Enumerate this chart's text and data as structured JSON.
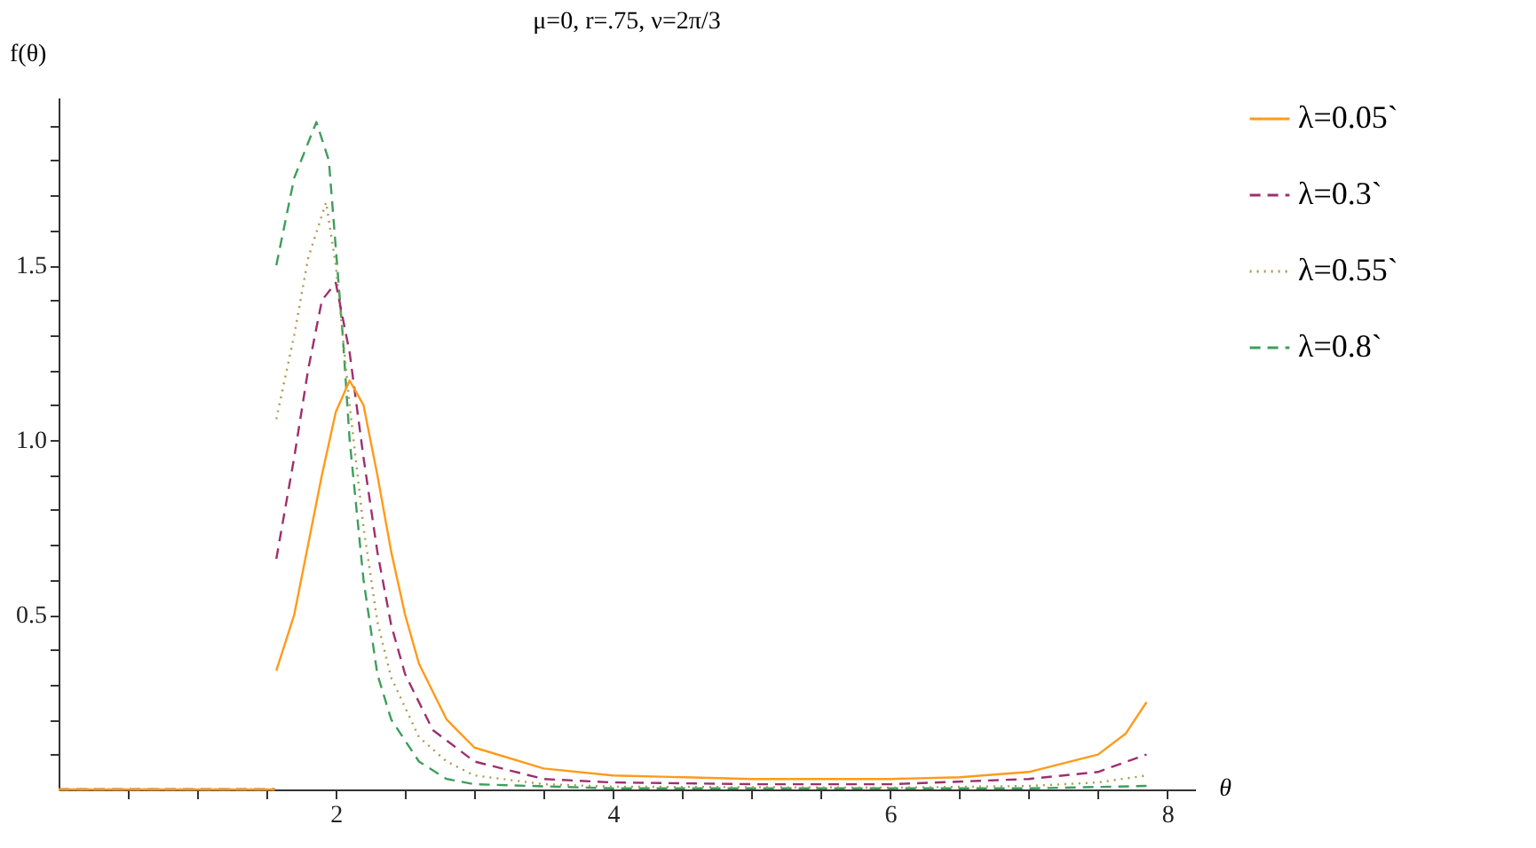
{
  "chart_data": {
    "type": "line",
    "title": "μ=0, r=.75, ν=2π/3",
    "xlabel": "θ",
    "ylabel": "f(θ)",
    "xlim": [
      0,
      8.2
    ],
    "ylim": [
      0,
      1.98
    ],
    "xticks": [
      {
        "value": 0.5,
        "label": null
      },
      {
        "value": 1,
        "label": null
      },
      {
        "value": 1.5,
        "label": null
      },
      2,
      {
        "value": 2.5,
        "label": null
      },
      {
        "value": 3,
        "label": null
      },
      {
        "value": 3.5,
        "label": null
      },
      4,
      {
        "value": 4.5,
        "label": null
      },
      {
        "value": 5,
        "label": null
      },
      {
        "value": 5.5,
        "label": null
      },
      6,
      {
        "value": 6.5,
        "label": null
      },
      {
        "value": 7,
        "label": null
      },
      {
        "value": 7.5,
        "label": null
      },
      8
    ],
    "yticks": [
      {
        "value": 0.1,
        "label": null
      },
      {
        "value": 0.2,
        "label": null
      },
      {
        "value": 0.3,
        "label": null
      },
      {
        "value": 0.4,
        "label": null
      },
      {
        "value": 0.5,
        "label": "0.5"
      },
      {
        "value": 0.6,
        "label": null
      },
      {
        "value": 0.7,
        "label": null
      },
      {
        "value": 0.8,
        "label": null
      },
      {
        "value": 0.9,
        "label": null
      },
      {
        "value": 1.0,
        "label": "1.0"
      },
      {
        "value": 1.1,
        "label": null
      },
      {
        "value": 1.2,
        "label": null
      },
      {
        "value": 1.3,
        "label": null
      },
      {
        "value": 1.4,
        "label": null
      },
      {
        "value": 1.5,
        "label": "1.5"
      },
      {
        "value": 1.6,
        "label": null
      },
      {
        "value": 1.7,
        "label": null
      },
      {
        "value": 1.8,
        "label": null
      },
      {
        "value": 1.9,
        "label": null
      }
    ],
    "legend": "right",
    "series": [
      {
        "name": "λ=0.05`",
        "color": "#ff9a1a",
        "line_style": "solid",
        "x": [
          0,
          1.56,
          1.565,
          1.571,
          1.7,
          1.8,
          1.9,
          2.0,
          2.1,
          2.2,
          2.3,
          2.4,
          2.5,
          2.6,
          2.8,
          3.0,
          3.5,
          4,
          5,
          6,
          6.5,
          7,
          7.5,
          7.7,
          7.85
        ],
        "values": [
          0,
          0,
          null,
          0.34,
          0.5,
          0.7,
          0.9,
          1.08,
          1.17,
          1.1,
          0.9,
          0.68,
          0.5,
          0.36,
          0.2,
          0.12,
          0.06,
          0.04,
          0.03,
          0.03,
          0.035,
          0.05,
          0.1,
          0.16,
          0.25
        ]
      },
      {
        "name": "λ=0.3`",
        "color": "#9e2f6e",
        "line_style": "dashed",
        "x": [
          0,
          1.56,
          1.565,
          1.571,
          1.7,
          1.8,
          1.9,
          2.0,
          2.1,
          2.2,
          2.3,
          2.4,
          2.5,
          2.7,
          3.0,
          3.5,
          4,
          5,
          6,
          7,
          7.5,
          7.85
        ],
        "values": [
          0,
          0,
          null,
          0.66,
          0.95,
          1.2,
          1.4,
          1.45,
          1.25,
          0.95,
          0.68,
          0.47,
          0.33,
          0.17,
          0.08,
          0.03,
          0.02,
          0.015,
          0.015,
          0.03,
          0.05,
          0.1
        ]
      },
      {
        "name": "λ=0.55`",
        "color": "#a89a4e",
        "line_style": "dotted",
        "x": [
          0,
          1.56,
          1.565,
          1.571,
          1.7,
          1.8,
          1.93,
          2.0,
          2.1,
          2.2,
          2.3,
          2.4,
          2.6,
          2.8,
          3.0,
          3.5,
          4,
          6,
          7,
          7.5,
          7.85
        ],
        "values": [
          0,
          0,
          null,
          1.06,
          1.3,
          1.52,
          1.68,
          1.5,
          1.1,
          0.75,
          0.48,
          0.32,
          0.15,
          0.08,
          0.04,
          0.015,
          0.008,
          0.005,
          0.01,
          0.02,
          0.04
        ]
      },
      {
        "name": "λ=0.8`",
        "color": "#3d9e5c",
        "line_style": "dashed",
        "x": [
          0,
          1.56,
          1.565,
          1.571,
          1.7,
          1.86,
          1.95,
          2.0,
          2.05,
          2.1,
          2.2,
          2.3,
          2.4,
          2.6,
          2.8,
          3.0,
          4,
          7,
          7.85
        ],
        "values": [
          0,
          0,
          null,
          1.5,
          1.75,
          1.91,
          1.8,
          1.55,
          1.3,
          1.0,
          0.6,
          0.33,
          0.2,
          0.08,
          0.03,
          0.015,
          0.003,
          0.003,
          0.01
        ]
      }
    ]
  }
}
